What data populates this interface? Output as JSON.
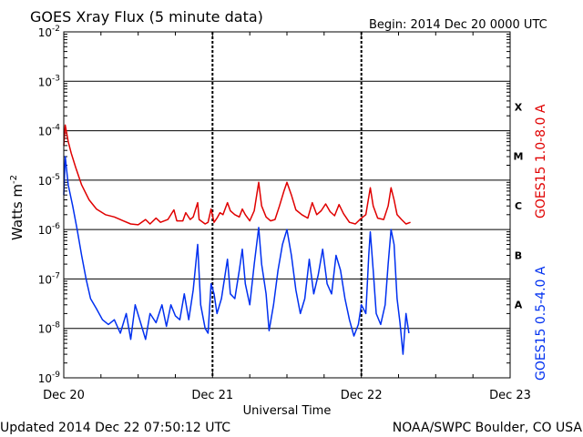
{
  "chart_data": {
    "type": "line",
    "title": "GOES Xray Flux (5 minute data)",
    "begin_label": "Begin:  2014 Dec 20 0000 UTC",
    "ylabel_base": "Watts m",
    "ylabel_exp": "-2",
    "xlabel": "Universal Time",
    "updated_label": "Updated 2014 Dec 22 07:50:12 UTC",
    "source_label": "NOAA/SWPC Boulder, CO USA",
    "y_scale": "log",
    "ylim": [
      1e-09,
      0.01
    ],
    "y_ticks": [
      {
        "base": "10",
        "exp": "-2"
      },
      {
        "base": "10",
        "exp": "-3"
      },
      {
        "base": "10",
        "exp": "-4"
      },
      {
        "base": "10",
        "exp": "-5"
      },
      {
        "base": "10",
        "exp": "-6"
      },
      {
        "base": "10",
        "exp": "-7"
      },
      {
        "base": "10",
        "exp": "-8"
      },
      {
        "base": "10",
        "exp": "-9"
      }
    ],
    "x_ticks": [
      "Dec 20",
      "Dec 21",
      "Dec 22",
      "Dec 23"
    ],
    "xlim_days": [
      0,
      3
    ],
    "flare_classes": [
      "X",
      "M",
      "C",
      "B",
      "A"
    ],
    "grid": true,
    "series": [
      {
        "name": "GOES15 1.0-8.0 A",
        "color": "#e00000",
        "points": [
          [
            0.0,
            5e-05
          ],
          [
            0.01,
            0.00013
          ],
          [
            0.03,
            6e-05
          ],
          [
            0.05,
            3.5e-05
          ],
          [
            0.08,
            1.8e-05
          ],
          [
            0.12,
            8e-06
          ],
          [
            0.17,
            4e-06
          ],
          [
            0.22,
            2.6e-06
          ],
          [
            0.28,
            2e-06
          ],
          [
            0.34,
            1.8e-06
          ],
          [
            0.4,
            1.5e-06
          ],
          [
            0.45,
            1.3e-06
          ],
          [
            0.5,
            1.25e-06
          ],
          [
            0.55,
            1.6e-06
          ],
          [
            0.58,
            1.3e-06
          ],
          [
            0.62,
            1.7e-06
          ],
          [
            0.65,
            1.4e-06
          ],
          [
            0.7,
            1.6e-06
          ],
          [
            0.74,
            2.5e-06
          ],
          [
            0.76,
            1.5e-06
          ],
          [
            0.8,
            1.5e-06
          ],
          [
            0.82,
            2.2e-06
          ],
          [
            0.85,
            1.6e-06
          ],
          [
            0.87,
            1.8e-06
          ],
          [
            0.9,
            3.5e-06
          ],
          [
            0.91,
            1.6e-06
          ],
          [
            0.95,
            1.3e-06
          ],
          [
            0.97,
            1.4e-06
          ],
          [
            0.99,
            2.6e-06
          ],
          [
            1.01,
            1.4e-06
          ],
          [
            1.03,
            1.7e-06
          ],
          [
            1.05,
            2.2e-06
          ],
          [
            1.07,
            2e-06
          ],
          [
            1.1,
            3.5e-06
          ],
          [
            1.12,
            2.4e-06
          ],
          [
            1.15,
            2e-06
          ],
          [
            1.18,
            1.8e-06
          ],
          [
            1.2,
            2.6e-06
          ],
          [
            1.22,
            2e-06
          ],
          [
            1.25,
            1.5e-06
          ],
          [
            1.28,
            2.4e-06
          ],
          [
            1.31,
            9e-06
          ],
          [
            1.33,
            3e-06
          ],
          [
            1.36,
            1.8e-06
          ],
          [
            1.39,
            1.5e-06
          ],
          [
            1.42,
            1.6e-06
          ],
          [
            1.45,
            3e-06
          ],
          [
            1.48,
            6e-06
          ],
          [
            1.5,
            9e-06
          ],
          [
            1.53,
            5e-06
          ],
          [
            1.56,
            2.5e-06
          ],
          [
            1.6,
            2e-06
          ],
          [
            1.64,
            1.7e-06
          ],
          [
            1.67,
            3.5e-06
          ],
          [
            1.7,
            2e-06
          ],
          [
            1.73,
            2.4e-06
          ],
          [
            1.76,
            3.3e-06
          ],
          [
            1.79,
            2.3e-06
          ],
          [
            1.82,
            1.9e-06
          ],
          [
            1.85,
            3.2e-06
          ],
          [
            1.88,
            2.1e-06
          ],
          [
            1.92,
            1.4e-06
          ],
          [
            1.96,
            1.3e-06
          ],
          [
            2.0,
            1.7e-06
          ],
          [
            2.03,
            2e-06
          ],
          [
            2.06,
            7e-06
          ],
          [
            2.08,
            3e-06
          ],
          [
            2.11,
            1.7e-06
          ],
          [
            2.15,
            1.6e-06
          ],
          [
            2.18,
            3e-06
          ],
          [
            2.2,
            7e-06
          ],
          [
            2.22,
            4e-06
          ],
          [
            2.24,
            2e-06
          ],
          [
            2.27,
            1.6e-06
          ],
          [
            2.3,
            1.3e-06
          ],
          [
            2.33,
            1.4e-06
          ]
        ]
      },
      {
        "name": "GOES15 0.5-4.0 A",
        "color": "#0030f0",
        "points": [
          [
            0.0,
            5e-06
          ],
          [
            0.01,
            3e-05
          ],
          [
            0.03,
            8e-06
          ],
          [
            0.06,
            3e-06
          ],
          [
            0.09,
            1e-06
          ],
          [
            0.12,
            3e-07
          ],
          [
            0.15,
            1e-07
          ],
          [
            0.18,
            4e-08
          ],
          [
            0.22,
            2.5e-08
          ],
          [
            0.26,
            1.5e-08
          ],
          [
            0.3,
            1.2e-08
          ],
          [
            0.34,
            1.5e-08
          ],
          [
            0.38,
            8e-09
          ],
          [
            0.42,
            2e-08
          ],
          [
            0.45,
            6e-09
          ],
          [
            0.48,
            3e-08
          ],
          [
            0.52,
            1.2e-08
          ],
          [
            0.55,
            6e-09
          ],
          [
            0.58,
            2e-08
          ],
          [
            0.62,
            1.3e-08
          ],
          [
            0.66,
            3e-08
          ],
          [
            0.69,
            1.1e-08
          ],
          [
            0.72,
            3e-08
          ],
          [
            0.75,
            1.8e-08
          ],
          [
            0.78,
            1.5e-08
          ],
          [
            0.81,
            5e-08
          ],
          [
            0.84,
            1.5e-08
          ],
          [
            0.87,
            6e-08
          ],
          [
            0.9,
            5e-07
          ],
          [
            0.92,
            3e-08
          ],
          [
            0.95,
            1e-08
          ],
          [
            0.97,
            8e-09
          ],
          [
            0.99,
            8e-08
          ],
          [
            1.01,
            5e-08
          ],
          [
            1.03,
            2e-08
          ],
          [
            1.06,
            4e-08
          ],
          [
            1.1,
            2.5e-07
          ],
          [
            1.12,
            5e-08
          ],
          [
            1.15,
            4e-08
          ],
          [
            1.18,
            1.5e-07
          ],
          [
            1.2,
            4e-07
          ],
          [
            1.22,
            8e-08
          ],
          [
            1.25,
            3e-08
          ],
          [
            1.28,
            2e-07
          ],
          [
            1.31,
            1.1e-06
          ],
          [
            1.33,
            2e-07
          ],
          [
            1.36,
            5e-08
          ],
          [
            1.38,
            9e-09
          ],
          [
            1.41,
            3e-08
          ],
          [
            1.44,
            1.5e-07
          ],
          [
            1.47,
            5e-07
          ],
          [
            1.5,
            1e-06
          ],
          [
            1.53,
            3e-07
          ],
          [
            1.56,
            6e-08
          ],
          [
            1.59,
            2e-08
          ],
          [
            1.62,
            4e-08
          ],
          [
            1.65,
            2.5e-07
          ],
          [
            1.68,
            5e-08
          ],
          [
            1.71,
            1.2e-07
          ],
          [
            1.74,
            4e-07
          ],
          [
            1.77,
            8e-08
          ],
          [
            1.8,
            5e-08
          ],
          [
            1.83,
            3e-07
          ],
          [
            1.86,
            1.5e-07
          ],
          [
            1.89,
            4e-08
          ],
          [
            1.92,
            1.5e-08
          ],
          [
            1.95,
            7e-09
          ],
          [
            1.98,
            1.2e-08
          ],
          [
            2.0,
            3e-08
          ],
          [
            2.03,
            2e-08
          ],
          [
            2.05,
            3e-07
          ],
          [
            2.06,
            9e-07
          ],
          [
            2.08,
            1.5e-07
          ],
          [
            2.1,
            2e-08
          ],
          [
            2.13,
            1.2e-08
          ],
          [
            2.16,
            3e-08
          ],
          [
            2.18,
            2e-07
          ],
          [
            2.2,
            1e-06
          ],
          [
            2.22,
            5e-07
          ],
          [
            2.24,
            4e-08
          ],
          [
            2.26,
            1.3e-08
          ],
          [
            2.28,
            3e-09
          ],
          [
            2.3,
            2e-08
          ],
          [
            2.32,
            8e-09
          ]
        ]
      }
    ]
  }
}
